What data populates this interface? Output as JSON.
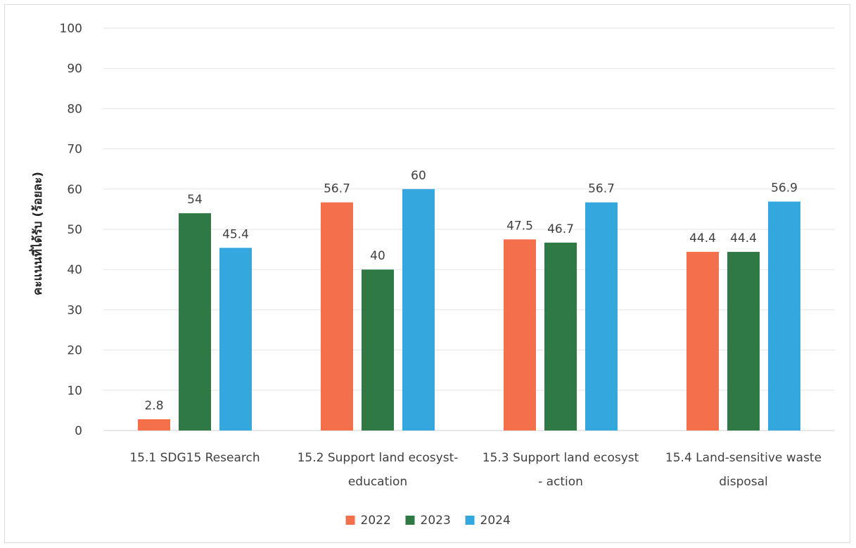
{
  "chart_data": {
    "type": "bar",
    "title": "",
    "xlabel": "",
    "ylabel": "คะแนนที่ได้รับ (ร้อยละ)",
    "ylim": [
      0,
      100
    ],
    "yticks": [
      "0",
      "10",
      "20",
      "30",
      "40",
      "50",
      "60",
      "70",
      "80",
      "90",
      "100"
    ],
    "grid": true,
    "legend_position": "bottom",
    "categories": [
      [
        "15.1 SDG15 Research"
      ],
      [
        "15.2 Support land ecosyst-",
        "education"
      ],
      [
        "15.3 Support land ecosyst",
        "- action"
      ],
      [
        "15.4 Land-sensitive waste",
        "disposal"
      ]
    ],
    "series": [
      {
        "name": "2022",
        "color": "#f4704a",
        "values": [
          2.8,
          56.7,
          47.5,
          44.4
        ]
      },
      {
        "name": "2023",
        "color": "#2f7a44",
        "values": [
          54,
          40,
          46.7,
          44.4
        ]
      },
      {
        "name": "2024",
        "color": "#34a7de",
        "values": [
          45.4,
          60,
          56.7,
          56.9
        ]
      }
    ]
  }
}
